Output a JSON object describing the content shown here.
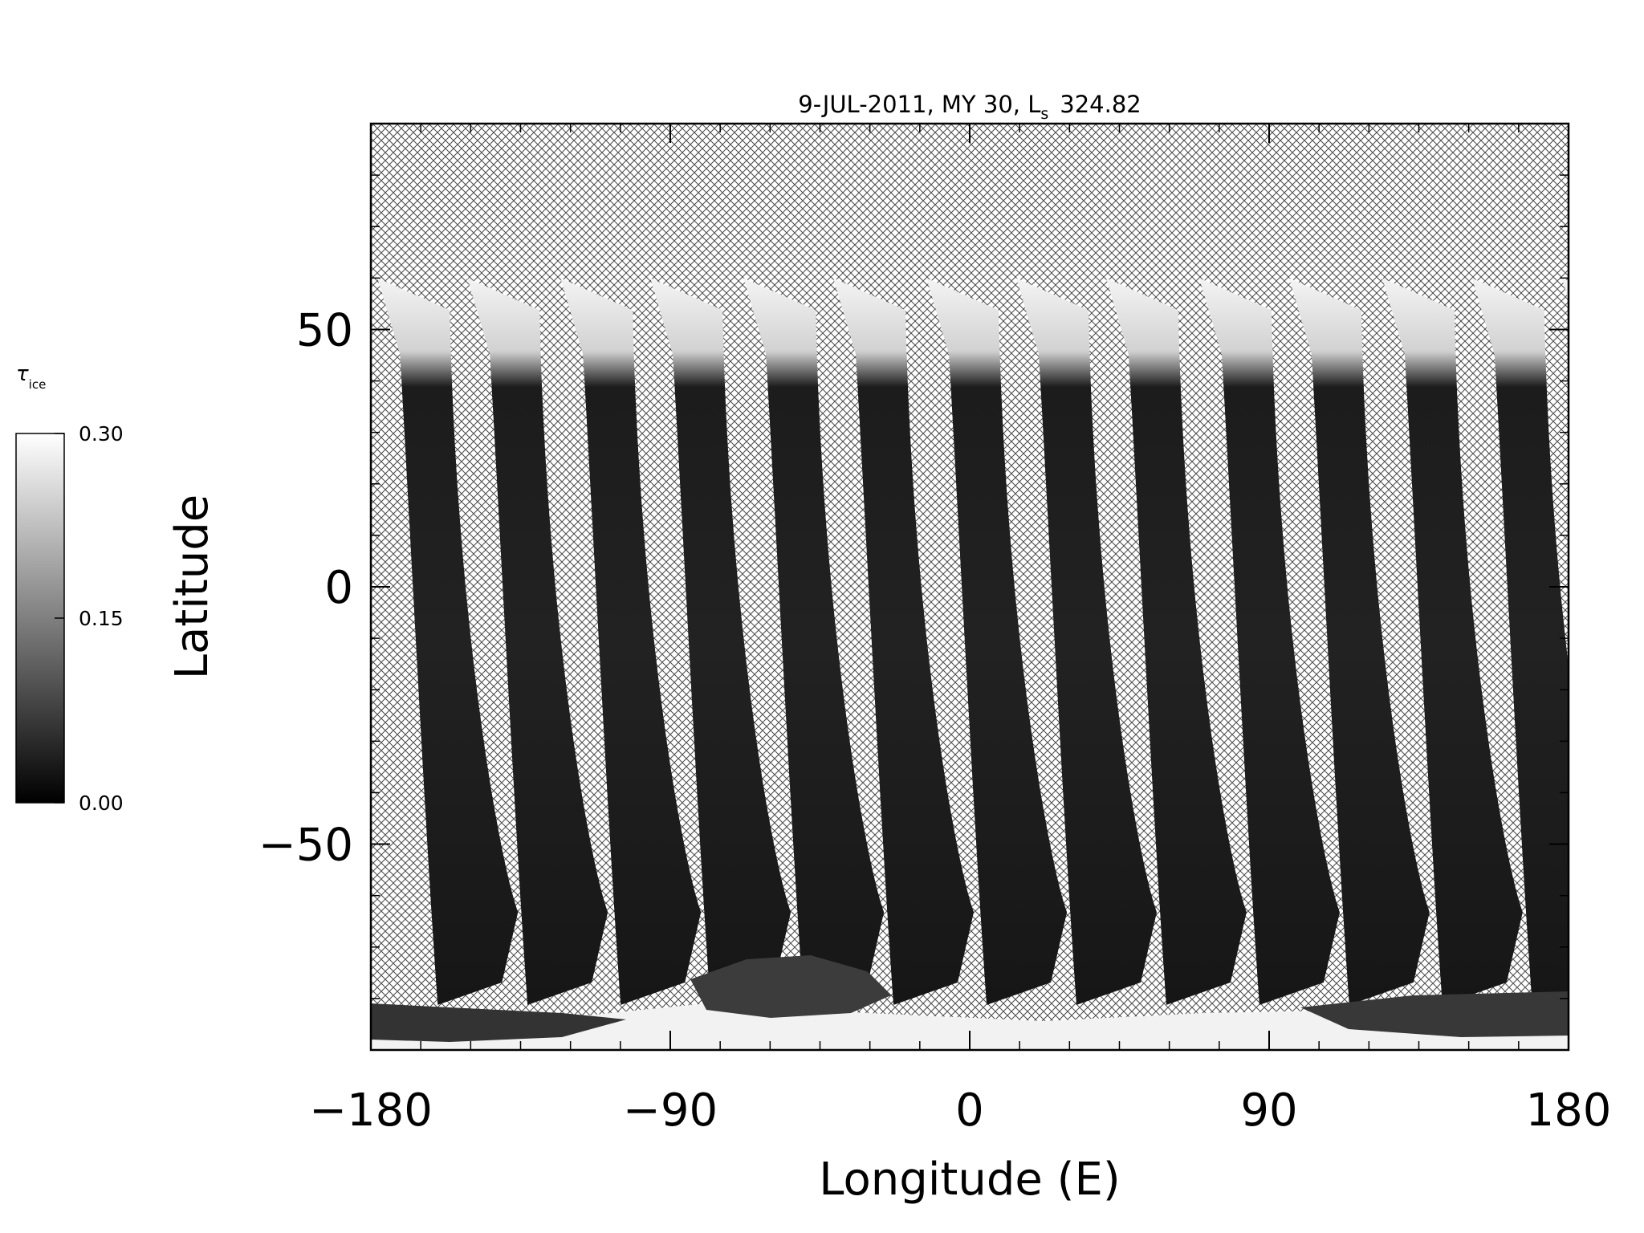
{
  "chart_data": {
    "type": "heatmap",
    "title": "9-JUL-2011, MY 30,  L",
    "title_subscript": "s",
    "title_value": "324.82",
    "xlabel": "Longitude (E)",
    "ylabel": "Latitude",
    "xlim": [
      -180,
      180
    ],
    "ylim": [
      -90,
      90
    ],
    "xticks": [
      -180,
      -90,
      0,
      90,
      180
    ],
    "yticks": [
      -50,
      0,
      50
    ],
    "colorbar": {
      "label": "τ",
      "label_subscript": "ice",
      "range": [
        0.0,
        0.3
      ],
      "ticks": [
        "0.30",
        "0.15",
        "0.00"
      ],
      "colormap": "grayscale"
    },
    "no_data_fill": "crosshatch",
    "swaths": {
      "count": 14,
      "north_edge_lat": 60,
      "south_edge_lat": -80,
      "top_longitudes": [
        -178,
        -151,
        -123,
        -96,
        -68,
        -41,
        -13,
        14,
        41,
        69,
        96,
        124,
        151,
        178
      ]
    }
  },
  "colors": {
    "background": "#ffffff",
    "axis": "#000000",
    "hatch": "#4a4a4a",
    "swath_dark": "#161616",
    "cloud_bright": "#f4f4f4"
  }
}
